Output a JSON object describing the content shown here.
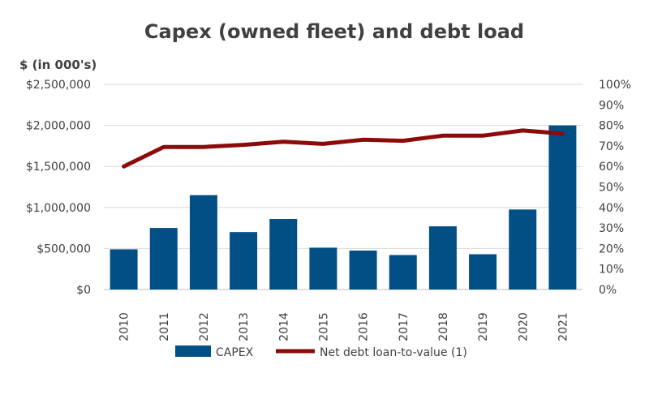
{
  "chart_data": {
    "type": "bar",
    "title": "Capex (owned fleet) and debt load",
    "y_axis_label": "$ (in 000's)",
    "categories": [
      "2010",
      "2011",
      "2012",
      "2013",
      "2014",
      "2015",
      "2016",
      "2017",
      "2018",
      "2019",
      "2020",
      "2021"
    ],
    "series": [
      {
        "name": "CAPEX",
        "type": "bar",
        "axis": "left",
        "color": "#024f86",
        "values": [
          490000,
          750000,
          1150000,
          700000,
          860000,
          510000,
          475000,
          420000,
          770000,
          430000,
          975000,
          2000000
        ]
      },
      {
        "name": "Net debt loan-to-value (1)",
        "type": "line",
        "axis": "right",
        "color": "#8b0a0a",
        "values": [
          60,
          69.5,
          69.5,
          70.5,
          72,
          71,
          73,
          72.5,
          75,
          75,
          77.5,
          76
        ]
      }
    ],
    "left_axis": {
      "ylim": [
        0,
        2500000
      ],
      "tick_labels": [
        "$0",
        "$500,000",
        "$1,000,000",
        "$1,500,000",
        "$2,000,000",
        "$2,500,000"
      ],
      "tick_values": [
        0,
        500000,
        1000000,
        1500000,
        2000000,
        2500000
      ]
    },
    "right_axis": {
      "ylim": [
        0,
        100
      ],
      "tick_labels": [
        "0%",
        "10%",
        "20%",
        "30%",
        "40%",
        "50%",
        "60%",
        "70%",
        "80%",
        "90%",
        "100%"
      ],
      "tick_values": [
        0,
        10,
        20,
        30,
        40,
        50,
        60,
        70,
        80,
        90,
        100
      ]
    },
    "grid": true,
    "legend_position": "bottom"
  }
}
